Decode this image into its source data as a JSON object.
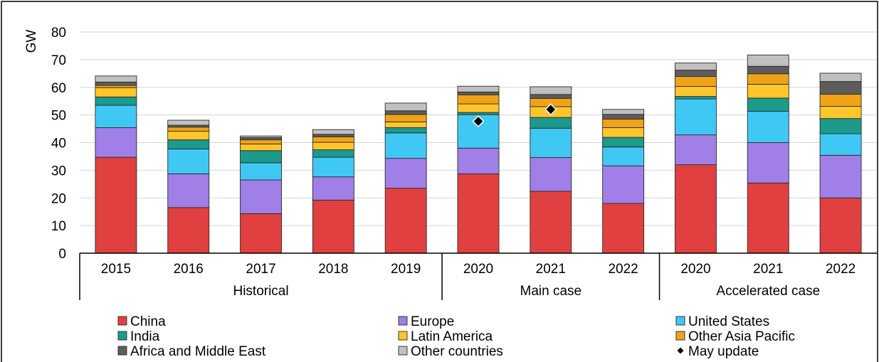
{
  "chart_data": {
    "type": "bar",
    "stacked": true,
    "ylabel": "GW",
    "ylim": [
      0,
      80
    ],
    "yticks": [
      0,
      10,
      20,
      30,
      40,
      50,
      60,
      70,
      80
    ],
    "grid": true,
    "legend_position": "bottom",
    "categories": [
      "2015",
      "2016",
      "2017",
      "2018",
      "2019",
      "2020",
      "2021",
      "2022",
      "2020",
      "2021",
      "2022"
    ],
    "groups": [
      {
        "label": "Historical",
        "start": 0,
        "end": 4
      },
      {
        "label": "Main case",
        "start": 5,
        "end": 7
      },
      {
        "label": "Accelerated case",
        "start": 8,
        "end": 10
      }
    ],
    "series": [
      {
        "name": "China",
        "color": "#e0403f",
        "values": [
          34.7,
          16.5,
          14.3,
          19.2,
          23.5,
          28.7,
          22.4,
          18.0,
          32.0,
          25.4,
          20.0
        ]
      },
      {
        "name": "Europe",
        "color": "#a07fe6",
        "values": [
          10.7,
          12.2,
          12.2,
          8.4,
          10.8,
          9.3,
          12.2,
          13.6,
          10.8,
          14.6,
          15.4
        ]
      },
      {
        "name": "United States",
        "color": "#40c8f4",
        "values": [
          8.1,
          9.0,
          6.2,
          7.1,
          9.2,
          12.1,
          10.6,
          6.8,
          13.0,
          11.3,
          7.8
        ]
      },
      {
        "name": "India",
        "color": "#1c9a8c",
        "values": [
          3.0,
          3.3,
          4.4,
          2.7,
          1.9,
          0.8,
          3.9,
          3.5,
          0.9,
          4.8,
          5.5
        ]
      },
      {
        "name": "Latin America",
        "color": "#ffc62c",
        "values": [
          3.4,
          3.1,
          2.4,
          2.7,
          2.1,
          3.1,
          3.9,
          3.5,
          3.6,
          5.0,
          4.4
        ]
      },
      {
        "name": "Other Asia Pacific",
        "color": "#f0a316",
        "values": [
          0.8,
          1.5,
          1.5,
          2.0,
          2.7,
          3.3,
          3.0,
          3.1,
          3.6,
          3.8,
          4.4
        ]
      },
      {
        "name": "Africa and Middle East",
        "color": "#5d5d5d",
        "values": [
          1.2,
          0.7,
          0.8,
          0.9,
          1.3,
          1.0,
          1.4,
          1.7,
          2.3,
          2.7,
          4.6
        ]
      },
      {
        "name": "Other countries",
        "color": "#c0c0c0",
        "values": [
          2.2,
          1.8,
          0.6,
          1.7,
          2.8,
          2.1,
          2.8,
          1.8,
          2.6,
          4.1,
          3.0
        ]
      }
    ],
    "markers": {
      "name": "May update",
      "color": "#000000",
      "points": [
        {
          "index": 5,
          "value": 47.7
        },
        {
          "index": 6,
          "value": 52.0
        }
      ]
    }
  }
}
